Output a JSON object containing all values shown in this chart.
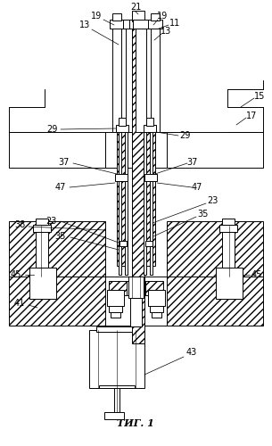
{
  "bg_color": "#ffffff",
  "line_color": "#000000",
  "title": "ΤИГ. 1",
  "lw": 0.7
}
